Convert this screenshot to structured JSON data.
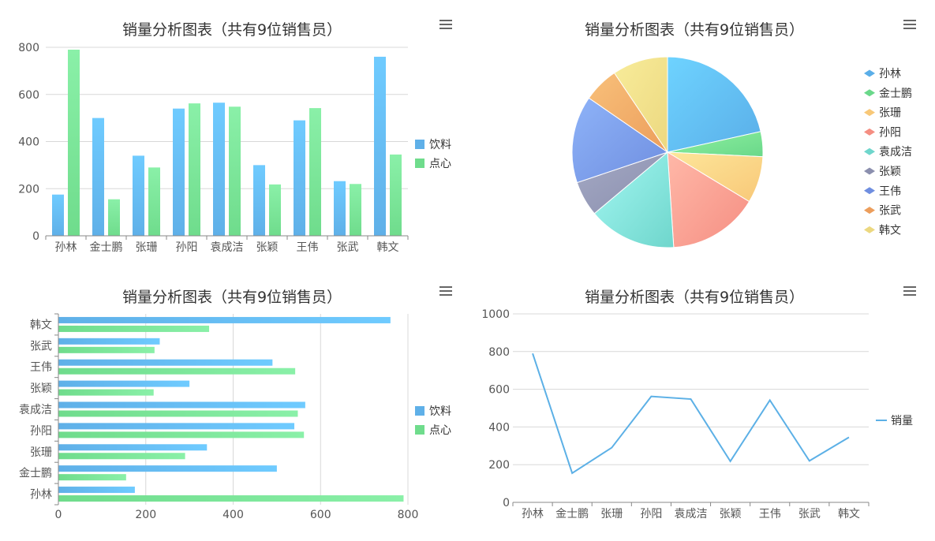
{
  "chart_data": [
    {
      "type": "bar",
      "title": "销量分析图表（共有9位销售员）",
      "categories": [
        "孙林",
        "金士鹏",
        "张珊",
        "孙阳",
        "袁成洁",
        "张颖",
        "王伟",
        "张武",
        "韩文"
      ],
      "series": [
        {
          "name": "饮料",
          "values": [
            175,
            500,
            340,
            540,
            565,
            300,
            490,
            232,
            760
          ]
        },
        {
          "name": "点心",
          "values": [
            790,
            155,
            290,
            562,
            548,
            218,
            542,
            220,
            345
          ]
        }
      ],
      "ylim": [
        0,
        800
      ],
      "yticks": [
        0,
        200,
        400,
        600,
        800
      ],
      "legend": "right"
    },
    {
      "type": "pie",
      "title": "销量分析图表（共有9位销售员）",
      "labels": [
        "孙林",
        "金士鹏",
        "张珊",
        "孙阳",
        "袁成洁",
        "张颖",
        "王伟",
        "张武",
        "韩文"
      ],
      "values": [
        790,
        155,
        290,
        562,
        548,
        218,
        542,
        220,
        345
      ],
      "legend": "right"
    },
    {
      "type": "bar",
      "orientation": "horizontal",
      "title": "销量分析图表（共有9位销售员）",
      "categories": [
        "孙林",
        "金士鹏",
        "张珊",
        "孙阳",
        "袁成洁",
        "张颖",
        "王伟",
        "张武",
        "韩文"
      ],
      "series": [
        {
          "name": "饮料",
          "values": [
            175,
            500,
            340,
            540,
            565,
            300,
            490,
            232,
            760
          ]
        },
        {
          "name": "点心",
          "values": [
            790,
            155,
            290,
            562,
            548,
            218,
            542,
            220,
            345
          ]
        }
      ],
      "xlim": [
        0,
        800
      ],
      "xticks": [
        0,
        200,
        400,
        600,
        800
      ],
      "legend": "right"
    },
    {
      "type": "line",
      "title": "销量分析图表（共有9位销售员）",
      "categories": [
        "孙林",
        "金士鹏",
        "张珊",
        "孙阳",
        "袁成洁",
        "张颖",
        "王伟",
        "张武",
        "韩文"
      ],
      "series": [
        {
          "name": "销量",
          "values": [
            790,
            155,
            290,
            562,
            548,
            218,
            542,
            220,
            345
          ]
        }
      ],
      "ylim": [
        0,
        1000
      ],
      "yticks": [
        0,
        200,
        400,
        600,
        800,
        1000
      ],
      "legend": "right"
    }
  ],
  "colors": {
    "s1_top": "#6fcbff",
    "s1_bot": "#5fb0e8",
    "s2_top": "#8af0a8",
    "s2_bot": "#6fdc8c",
    "line": "#5cb0e6",
    "pie": [
      [
        "#6ed3ff",
        "#5aaee8"
      ],
      [
        "#8ef0a0",
        "#6ad88a"
      ],
      [
        "#fde69a",
        "#f8c878"
      ],
      [
        "#ffb8a8",
        "#f58e82"
      ],
      [
        "#a3f7f2",
        "#6fd6cc"
      ],
      [
        "#a4a9c4",
        "#8b8fae"
      ],
      [
        "#8eb3f8",
        "#6f8ee0"
      ],
      [
        "#f8c07a",
        "#ec9e5c"
      ],
      [
        "#f8ec9a",
        "#ecd880"
      ]
    ],
    "legend_pie": [
      "#5aaee8",
      "#6ad88a",
      "#f8c878",
      "#f58e82",
      "#6fd6cc",
      "#8b8fae",
      "#6f8ee0",
      "#ec9e5c",
      "#ecd880"
    ]
  },
  "icons": {
    "menu": "hamburger-menu-icon"
  }
}
